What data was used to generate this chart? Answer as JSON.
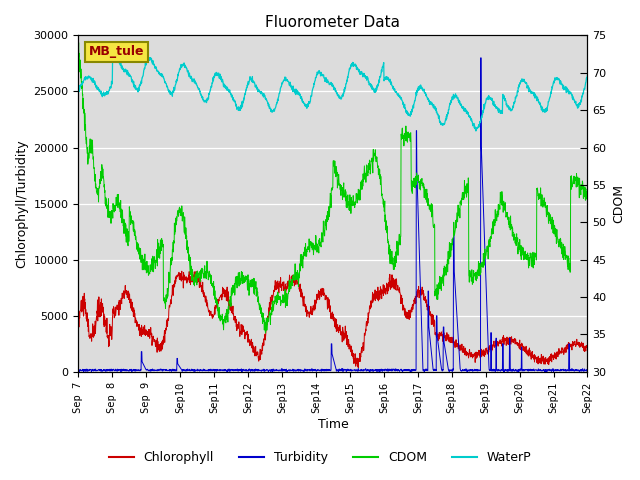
{
  "title": "Fluorometer Data",
  "xlabel": "Time",
  "ylabel_left": "Chlorophyll/Turbidity",
  "ylabel_right": "CDOM",
  "ylim_left": [
    0,
    30000
  ],
  "ylim_right": [
    30,
    75
  ],
  "yticks_left": [
    0,
    5000,
    10000,
    15000,
    20000,
    25000,
    30000
  ],
  "yticks_right": [
    30,
    35,
    40,
    45,
    50,
    55,
    60,
    65,
    70,
    75
  ],
  "background_color": "#e8e8e8",
  "plot_bg": "#e0e0e0",
  "station_label": "MB_tule",
  "xtick_labels": [
    "Sep 7",
    "Sep 8",
    "Sep 9",
    "Sep 10",
    "Sep 11",
    "Sep 12",
    "Sep 13",
    "Sep 14",
    "Sep 15",
    "Sep 16",
    "Sep 17",
    "Sep 18",
    "Sep 19",
    "Sep 20",
    "Sep 21",
    "Sep 22"
  ],
  "legend_items": [
    {
      "label": "Chlorophyll",
      "color": "#cc0000"
    },
    {
      "label": "Turbidity",
      "color": "#0000cc"
    },
    {
      "label": "CDOM",
      "color": "#00cc00"
    },
    {
      "label": "WaterP",
      "color": "#00cccc"
    }
  ]
}
